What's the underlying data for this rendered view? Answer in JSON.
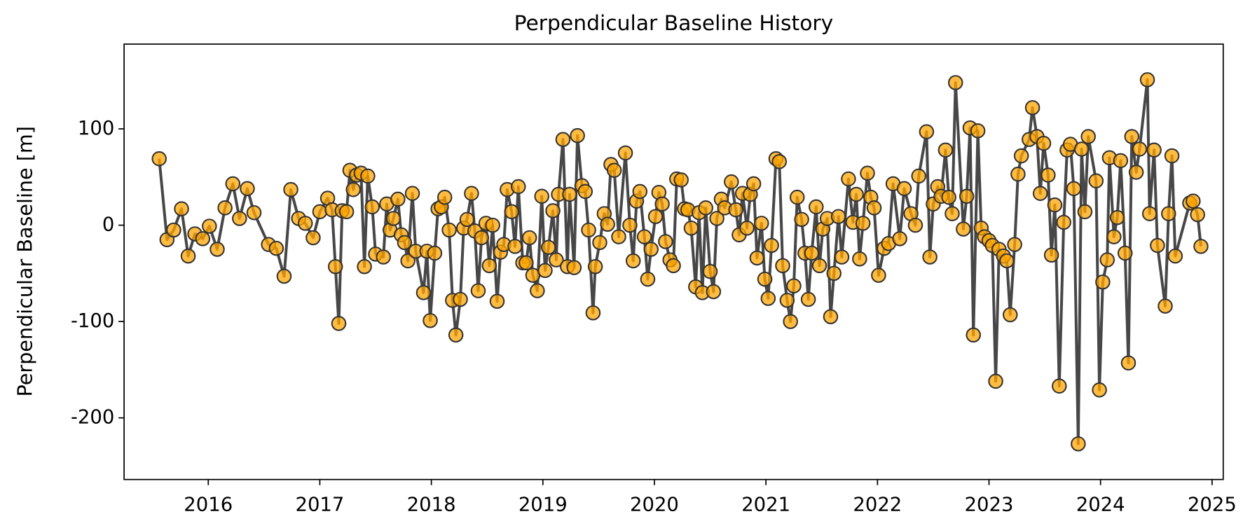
{
  "chart_data": {
    "type": "line",
    "title": "Perpendicular Baseline History",
    "ylabel": "Perpendicular Baseline [m]",
    "color": "#ffa500",
    "line_color": "#333333",
    "grid": false,
    "xlim": [
      2015.245,
      2025.1
    ],
    "xticks": [
      2016,
      2017,
      2018,
      2019,
      2020,
      2021,
      2022,
      2023,
      2024,
      2025
    ],
    "ylim": [
      -264,
      188
    ],
    "yticks": [
      -200,
      -100,
      0,
      100
    ],
    "x": [
      2015.56,
      2015.63,
      2015.69,
      2015.76,
      2015.82,
      2015.88,
      2015.95,
      2016.01,
      2016.08,
      2016.15,
      2016.22,
      2016.28,
      2016.35,
      2016.41,
      2016.54,
      2016.61,
      2016.68,
      2016.74,
      2016.81,
      2016.87,
      2016.94,
      2017.0,
      2017.07,
      2017.11,
      2017.14,
      2017.17,
      2017.2,
      2017.24,
      2017.27,
      2017.3,
      2017.33,
      2017.37,
      2017.4,
      2017.43,
      2017.47,
      2017.5,
      2017.57,
      2017.6,
      2017.63,
      2017.66,
      2017.7,
      2017.73,
      2017.76,
      2017.79,
      2017.83,
      2017.86,
      2017.93,
      2017.96,
      2017.99,
      2018.03,
      2018.06,
      2018.09,
      2018.12,
      2018.16,
      2018.19,
      2018.22,
      2018.26,
      2018.29,
      2018.32,
      2018.36,
      2018.39,
      2018.42,
      2018.45,
      2018.49,
      2018.52,
      2018.55,
      2018.59,
      2018.62,
      2018.65,
      2018.68,
      2018.72,
      2018.75,
      2018.78,
      2018.82,
      2018.85,
      2018.88,
      2018.91,
      2018.95,
      2018.99,
      2019.02,
      2019.05,
      2019.09,
      2019.12,
      2019.14,
      2019.18,
      2019.22,
      2019.24,
      2019.28,
      2019.31,
      2019.35,
      2019.38,
      2019.41,
      2019.45,
      2019.47,
      2019.51,
      2019.55,
      2019.58,
      2019.61,
      2019.64,
      2019.68,
      2019.74,
      2019.78,
      2019.81,
      2019.84,
      2019.87,
      2019.91,
      2019.94,
      2019.97,
      2020.01,
      2020.04,
      2020.07,
      2020.1,
      2020.14,
      2020.17,
      2020.2,
      2020.24,
      2020.27,
      2020.3,
      2020.33,
      2020.37,
      2020.4,
      2020.43,
      2020.46,
      2020.5,
      2020.53,
      2020.56,
      2020.6,
      2020.63,
      2020.69,
      2020.73,
      2020.76,
      2020.79,
      2020.83,
      2020.86,
      2020.89,
      2020.92,
      2020.96,
      2020.99,
      2021.02,
      2021.05,
      2021.09,
      2021.12,
      2021.15,
      2021.19,
      2021.22,
      2021.25,
      2021.28,
      2021.32,
      2021.35,
      2021.38,
      2021.41,
      2021.45,
      2021.48,
      2021.51,
      2021.55,
      2021.58,
      2021.61,
      2021.65,
      2021.68,
      2021.74,
      2021.78,
      2021.81,
      2021.84,
      2021.87,
      2021.91,
      2021.94,
      2021.97,
      2022.01,
      2022.06,
      2022.1,
      2022.14,
      2022.2,
      2022.24,
      2022.3,
      2022.34,
      2022.37,
      2022.44,
      2022.47,
      2022.5,
      2022.54,
      2022.57,
      2022.61,
      2022.64,
      2022.67,
      2022.7,
      2022.77,
      2022.8,
      2022.83,
      2022.86,
      2022.9,
      2022.93,
      2022.96,
      2023.0,
      2023.03,
      2023.06,
      2023.09,
      2023.13,
      2023.16,
      2023.19,
      2023.23,
      2023.26,
      2023.29,
      2023.36,
      2023.39,
      2023.43,
      2023.46,
      2023.49,
      2023.53,
      2023.56,
      2023.59,
      2023.63,
      2023.67,
      2023.7,
      2023.73,
      2023.76,
      2023.8,
      2023.83,
      2023.86,
      2023.89,
      2023.96,
      2023.99,
      2024.02,
      2024.06,
      2024.08,
      2024.12,
      2024.15,
      2024.18,
      2024.22,
      2024.25,
      2024.28,
      2024.32,
      2024.35,
      2024.42,
      2024.44,
      2024.48,
      2024.51,
      2024.58,
      2024.61,
      2024.64,
      2024.67,
      2024.8,
      2024.83,
      2024.87,
      2024.9
    ],
    "values": [
      69,
      -15,
      -5,
      17,
      -32,
      -9,
      -14,
      -1,
      -25,
      18,
      43,
      7,
      38,
      13,
      -20,
      -24,
      -53,
      37,
      7,
      2,
      -13,
      14,
      28,
      16,
      -43,
      -102,
      15,
      14,
      57,
      37,
      52,
      54,
      -43,
      51,
      19,
      -30,
      -33,
      22,
      -5,
      7,
      27,
      -10,
      -18,
      -37,
      33,
      -27,
      -70,
      -27,
      -99,
      -29,
      17,
      19,
      29,
      -5,
      -78,
      -114,
      -77,
      -3,
      6,
      33,
      -6,
      -68,
      -13,
      2,
      -42,
      0,
      -79,
      -28,
      -20,
      37,
      14,
      -22,
      40,
      -39,
      -39,
      -13,
      -52,
      -68,
      30,
      -47,
      -23,
      15,
      -36,
      32,
      89,
      -43,
      32,
      -44,
      93,
      41,
      35,
      -5,
      -91,
      -43,
      -18,
      12,
      1,
      63,
      57,
      -12,
      75,
      0,
      -37,
      25,
      35,
      -12,
      -56,
      -25,
      9,
      34,
      22,
      -17,
      -36,
      -42,
      48,
      47,
      17,
      16,
      -3,
      -64,
      13,
      -70,
      18,
      -48,
      -69,
      7,
      27,
      18,
      45,
      16,
      -10,
      33,
      -3,
      32,
      43,
      -34,
      2,
      -56,
      -76,
      -21,
      69,
      66,
      -42,
      -78,
      -100,
      -63,
      29,
      6,
      -29,
      -77,
      -29,
      19,
      -42,
      -4,
      7,
      -95,
      -50,
      9,
      -33,
      48,
      3,
      32,
      -35,
      2,
      54,
      29,
      18,
      -52,
      -24,
      -19,
      43,
      -14,
      38,
      12,
      0,
      51,
      97,
      -33,
      22,
      40,
      30,
      78,
      29,
      12,
      148,
      -4,
      30,
      101,
      -114,
      98,
      -3,
      -12,
      -16,
      -21,
      -162,
      -25,
      -32,
      -37,
      -93,
      -20,
      53,
      72,
      89,
      122,
      92,
      33,
      85,
      52,
      -31,
      21,
      -167,
      3,
      78,
      84,
      38,
      -227,
      79,
      14,
      92,
      46,
      -171,
      -59,
      -36,
      70,
      -12,
      8,
      67,
      -29,
      -143,
      92,
      55,
      79,
      151,
      12,
      78,
      -21,
      -84,
      12,
      72,
      -32,
      23,
      25,
      11,
      -22
    ]
  }
}
